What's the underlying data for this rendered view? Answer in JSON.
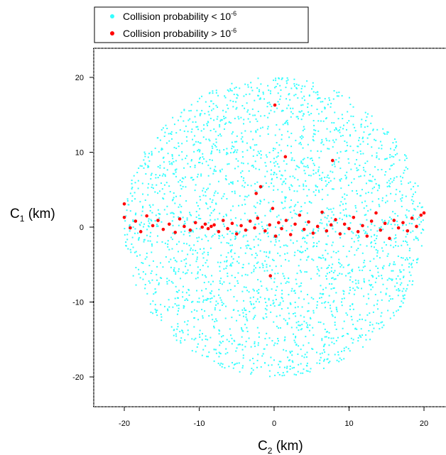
{
  "chart_data": {
    "type": "scatter",
    "xlabel_main": "C",
    "xlabel_sub": "2",
    "xlabel_unit": " (km)",
    "ylabel_main": "C",
    "ylabel_sub": "1",
    "ylabel_unit": " (km)",
    "xlim": [
      -24,
      24
    ],
    "ylim": [
      -24,
      24
    ],
    "xticks": [
      -20,
      -10,
      0,
      10,
      20
    ],
    "yticks": [
      -20,
      -10,
      0,
      10,
      20
    ],
    "xtick_labels": [
      "-20",
      "-10",
      "0",
      "10",
      "20"
    ],
    "ytick_labels": [
      "-20",
      "-10",
      "0",
      "10",
      "20"
    ],
    "grid": false,
    "legend_position": "top-left, above plot",
    "series": [
      {
        "name": "Collision probability < 10-6",
        "label_text": "Collision probability < 10",
        "label_exp": "-6",
        "color": "#33ffff",
        "marker": "small-dot",
        "region": "disk centered at (0,0) with radius 20 km, uniformly filled",
        "values": [
          [
            0.2,
            19.6
          ],
          [
            -3.5,
            19.0
          ],
          [
            4.1,
            18.8
          ],
          [
            -8.2,
            17.9
          ],
          [
            8.6,
            17.5
          ],
          [
            -12.0,
            15.7
          ],
          [
            12.2,
            15.3
          ],
          [
            -15.0,
            13.0
          ],
          [
            15.1,
            12.7
          ],
          [
            -17.3,
            10.0
          ],
          [
            17.6,
            9.5
          ],
          [
            -19.0,
            5.8
          ],
          [
            19.2,
            5.5
          ],
          [
            -19.8,
            -2.0
          ],
          [
            19.7,
            -2.5
          ],
          [
            -18.8,
            -6.5
          ],
          [
            18.5,
            -7.2
          ],
          [
            -16.2,
            -11.5
          ],
          [
            16.0,
            -11.8
          ],
          [
            -12.5,
            -15.2
          ],
          [
            12.8,
            -15.0
          ],
          [
            -8.0,
            -17.9
          ],
          [
            8.4,
            -17.8
          ],
          [
            -3.0,
            -19.4
          ],
          [
            3.2,
            -19.3
          ],
          [
            0.1,
            -19.8
          ],
          [
            -5.0,
            10.0
          ],
          [
            6.0,
            8.0
          ],
          [
            -9.0,
            5.0
          ],
          [
            10.0,
            -5.0
          ],
          [
            -4.0,
            -8.0
          ],
          [
            4.0,
            -12.0
          ],
          [
            -14.0,
            -3.0
          ],
          [
            14.0,
            3.0
          ],
          [
            -6.0,
            14.0
          ],
          [
            7.0,
            -14.0
          ],
          [
            0.5,
            5.0
          ],
          [
            -1.0,
            -5.0
          ],
          [
            2.0,
            12.0
          ],
          [
            -11.0,
            9.0
          ],
          [
            11.0,
            9.0
          ],
          [
            -10.0,
            -10.0
          ],
          [
            9.0,
            -10.0
          ],
          [
            -17.0,
            -4.0
          ],
          [
            16.5,
            1.5
          ]
        ]
      },
      {
        "name": "Collision probability > 10-6",
        "label_text": "Collision probability > 10",
        "label_exp": "-6",
        "color": "#ff0000",
        "marker": "small-dot",
        "values": [
          [
            -20.0,
            3.1
          ],
          [
            -20.0,
            1.3
          ],
          [
            -19.2,
            -0.1
          ],
          [
            -18.5,
            0.8
          ],
          [
            -17.8,
            -0.6
          ],
          [
            -17.0,
            1.5
          ],
          [
            -16.2,
            0.2
          ],
          [
            -15.5,
            0.9
          ],
          [
            -14.8,
            -0.3
          ],
          [
            -14.0,
            0.4
          ],
          [
            -13.2,
            -0.7
          ],
          [
            -12.6,
            1.1
          ],
          [
            -12.0,
            0.1
          ],
          [
            -11.2,
            -0.4
          ],
          [
            -10.5,
            0.6
          ],
          [
            -9.6,
            0.0
          ],
          [
            -9.2,
            0.4
          ],
          [
            -8.8,
            -0.2
          ],
          [
            -8.4,
            0.1
          ],
          [
            -8.0,
            0.3
          ],
          [
            -7.4,
            -0.6
          ],
          [
            -6.8,
            0.9
          ],
          [
            -6.2,
            -0.2
          ],
          [
            -5.6,
            0.5
          ],
          [
            -5.0,
            -0.9
          ],
          [
            -4.4,
            0.2
          ],
          [
            -3.8,
            -0.4
          ],
          [
            -3.2,
            0.8
          ],
          [
            -2.6,
            -0.1
          ],
          [
            -2.2,
            1.2
          ],
          [
            -1.8,
            5.4
          ],
          [
            -2.4,
            4.5
          ],
          [
            -1.2,
            -0.5
          ],
          [
            -0.6,
            0.3
          ],
          [
            -0.2,
            2.5
          ],
          [
            0.2,
            -1.2
          ],
          [
            0.6,
            0.6
          ],
          [
            0.1,
            16.3
          ],
          [
            1.5,
            9.4
          ],
          [
            -0.5,
            -6.5
          ],
          [
            1.0,
            -0.2
          ],
          [
            1.6,
            0.9
          ],
          [
            2.2,
            -1.0
          ],
          [
            2.8,
            0.4
          ],
          [
            3.4,
            1.6
          ],
          [
            4.0,
            -0.3
          ],
          [
            4.6,
            0.7
          ],
          [
            5.2,
            -0.8
          ],
          [
            5.8,
            0.1
          ],
          [
            6.4,
            2.0
          ],
          [
            7.0,
            -0.5
          ],
          [
            7.6,
            0.3
          ],
          [
            7.8,
            8.9
          ],
          [
            8.2,
            1.0
          ],
          [
            8.8,
            -0.9
          ],
          [
            9.4,
            0.4
          ],
          [
            10.0,
            -0.2
          ],
          [
            10.6,
            1.3
          ],
          [
            11.2,
            -0.6
          ],
          [
            11.8,
            0.2
          ],
          [
            12.4,
            -1.2
          ],
          [
            13.0,
            0.8
          ],
          [
            13.6,
            1.9
          ],
          [
            14.2,
            -0.4
          ],
          [
            14.8,
            0.5
          ],
          [
            15.4,
            -1.5
          ],
          [
            16.0,
            0.9
          ],
          [
            16.6,
            -0.1
          ],
          [
            17.2,
            0.6
          ],
          [
            17.8,
            -0.5
          ],
          [
            18.4,
            1.2
          ],
          [
            19.0,
            0.1
          ],
          [
            19.6,
            1.6
          ],
          [
            20.0,
            1.9
          ]
        ]
      }
    ]
  }
}
